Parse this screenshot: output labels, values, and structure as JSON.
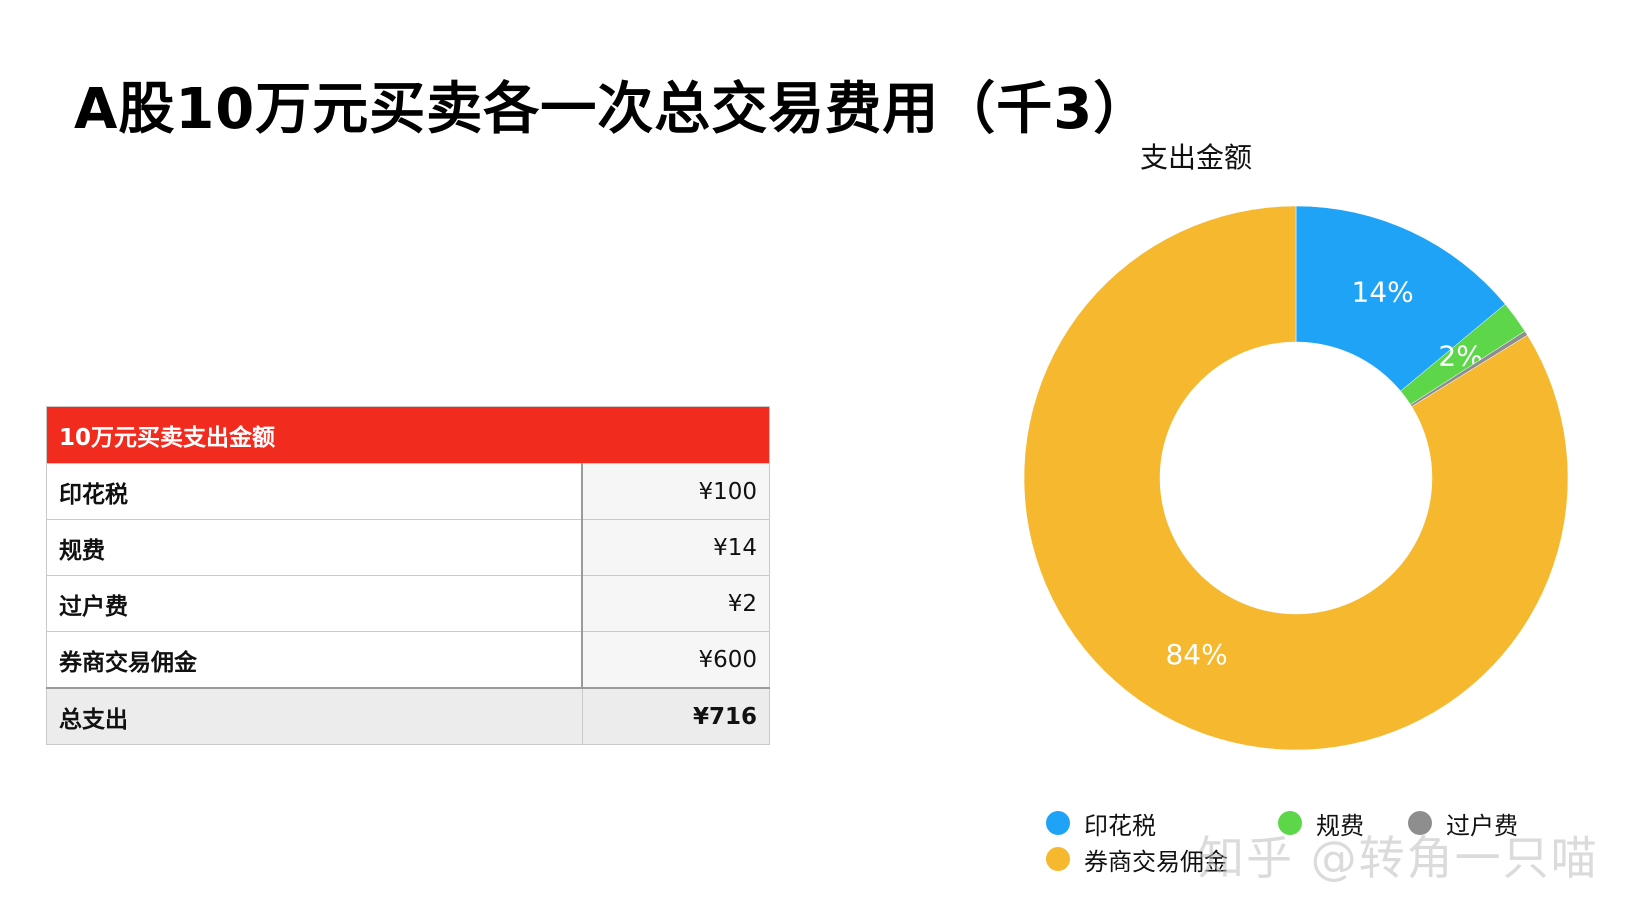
{
  "title": "A股10万元买卖各一次总交易费用（千3）",
  "table": {
    "header": "10万元买卖支出金额",
    "rows": [
      {
        "label": "印花税",
        "value": "¥100"
      },
      {
        "label": "规费",
        "value": "¥14"
      },
      {
        "label": "过户费",
        "value": "¥2"
      },
      {
        "label": "券商交易佣金",
        "value": "¥600"
      }
    ],
    "total": {
      "label": "总支出",
      "value": "¥716"
    }
  },
  "chart_data": {
    "type": "pie",
    "title": "支出金额",
    "categories": [
      "印花税",
      "规费",
      "过户费",
      "券商交易佣金"
    ],
    "values": [
      100,
      14,
      2,
      600
    ],
    "percent_labels": [
      "14%",
      "2%",
      "",
      "84%"
    ],
    "colors": [
      "#1ea3f7",
      "#5dd64a",
      "#8e8e8e",
      "#f5b82e"
    ],
    "donut": true,
    "legend_position": "bottom"
  },
  "watermark": "知乎 @转角一只喵"
}
